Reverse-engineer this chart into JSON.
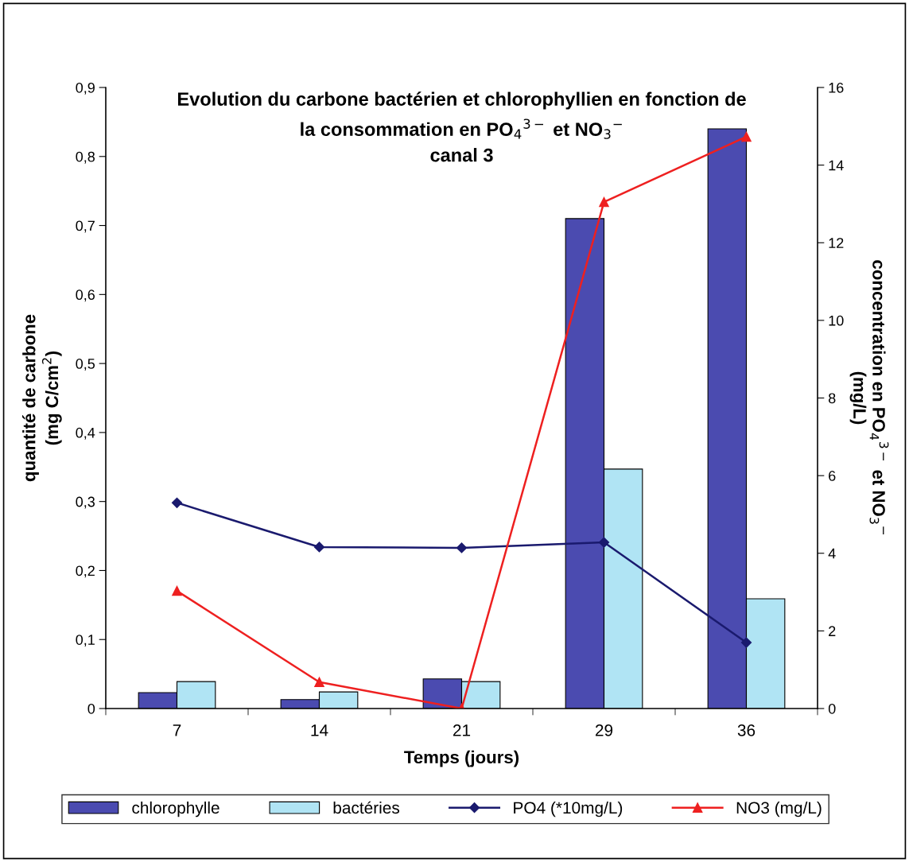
{
  "chart_data": {
    "type": "bar",
    "title": "Evolution du carbone bactérien et chlorophyllien en fonction de\nla consommation en PO$_{4}$$^{3−}$ et NO$_{3}$$^{−}$\ncanal 3",
    "xlabel": "Temps (jours)",
    "ylabel": "quantité de carbone\n(mg C/cm$^{2}$)",
    "y2label": "concentration en PO$_{4}$$^{3−}$ et NO$_{3}$$^{−}$\n(mg/L)",
    "categories": [
      "7",
      "14",
      "21",
      "29",
      "36"
    ],
    "series": [
      {
        "name": "chlorophylle",
        "color": "#4b4bb0",
        "values": [
          0.023,
          0.013,
          0.043,
          0.71,
          0.84
        ]
      },
      {
        "name": "bactéries",
        "color": "#b0e4f4",
        "values": [
          0.039,
          0.024,
          0.039,
          0.347,
          0.159
        ]
      },
      {
        "name": "PO4 (*10mg/L)",
        "type": "line",
        "axis": "y2",
        "color": "#1a1a6e",
        "marker": "diamond",
        "values": [
          5.3,
          4.16,
          4.14,
          4.28,
          1.7
        ]
      },
      {
        "name": "NO3 (mg/L)",
        "type": "line",
        "axis": "y2",
        "color": "#ee2020",
        "marker": "triangle",
        "values": [
          3.03,
          0.68,
          0,
          13.05,
          14.73
        ]
      }
    ],
    "ylim": [
      0,
      0.9
    ],
    "yticks": [
      0,
      {
        "value": 0.1,
        "label": "0,1"
      },
      {
        "value": 0.2,
        "label": "0,2"
      },
      {
        "value": 0.3,
        "label": "0,3"
      },
      {
        "value": 0.4,
        "label": "0,4"
      },
      {
        "value": 0.5,
        "label": "0,5"
      },
      {
        "value": 0.6,
        "label": "0,6"
      },
      {
        "value": 0.7,
        "label": "0,7"
      },
      {
        "value": 0.8,
        "label": "0,8"
      },
      {
        "value": 0.9,
        "label": "0,9"
      }
    ],
    "y2lim": [
      0,
      16
    ],
    "y2ticks": [
      0,
      2,
      4,
      6,
      8,
      10,
      12,
      14,
      16
    ],
    "grid": false,
    "legend": "bottom"
  }
}
